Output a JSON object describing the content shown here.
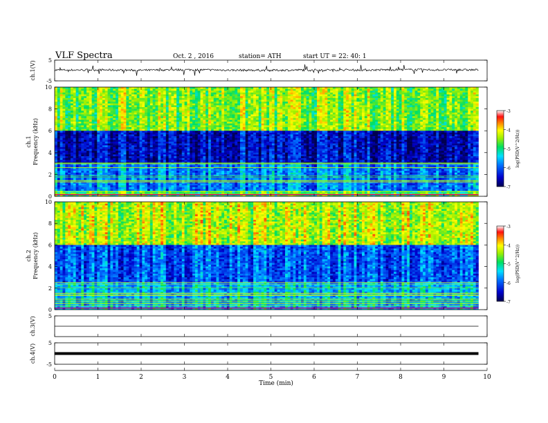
{
  "header": {
    "title": "VLF  Spectra",
    "date": "Oct. 2  , 2016",
    "station": "station= ATH",
    "start": "start  UT  =   22: 40: 1"
  },
  "colorbar": {
    "label": "log(PSD(V^2/Hz))",
    "ticks": [
      "-3",
      "-4",
      "-5",
      "-6",
      "-7"
    ]
  },
  "chart_data": [
    {
      "type": "line",
      "panel": "ch1-waveform",
      "ylabel": "ch.1(V)",
      "ylim": [
        -5,
        5
      ],
      "y_ticks": [
        "5",
        "-5"
      ],
      "x": [
        0,
        1,
        2,
        3,
        4,
        5,
        6,
        7,
        8,
        9,
        9.8
      ],
      "values": [
        0.2,
        0.3,
        0.1,
        0.4,
        0.2,
        0.1,
        0.3,
        0.2,
        0.4,
        0.3,
        0.3
      ]
    },
    {
      "type": "heatmap",
      "panel": "ch1-spectrogram",
      "ylabel": "ch.1\nFrequency  (kHz)",
      "ylabel_lines": [
        "ch.1",
        "Frequency  (kHz)"
      ],
      "ylim": [
        0,
        10
      ],
      "y_ticks": [
        "0",
        "2",
        "4",
        "6",
        "8",
        "10"
      ],
      "bands": [
        {
          "freq_khz": [
            6,
            10
          ],
          "log_psd": -4.5
        },
        {
          "freq_khz": [
            3,
            6
          ],
          "log_psd": -6.5
        },
        {
          "freq_khz": [
            0.5,
            3
          ],
          "log_psd": -5.8
        },
        {
          "freq_khz": [
            0,
            0.5
          ],
          "log_psd": -4.8
        }
      ],
      "crange": [
        -7,
        -3
      ]
    },
    {
      "type": "heatmap",
      "panel": "ch2-spectrogram",
      "ylabel_lines": [
        "ch.2",
        "Frequency  (kHz)"
      ],
      "ylim": [
        0,
        10
      ],
      "y_ticks": [
        "0",
        "2",
        "4",
        "6",
        "8",
        "10"
      ],
      "bands": [
        {
          "freq_khz": [
            6,
            10
          ],
          "log_psd": -4.3
        },
        {
          "freq_khz": [
            2.5,
            6
          ],
          "log_psd": -6.0
        },
        {
          "freq_khz": [
            0,
            2.5
          ],
          "log_psd": -5.5
        }
      ],
      "crange": [
        -7,
        -3
      ]
    },
    {
      "type": "line",
      "panel": "ch3-waveform",
      "ylabel": "ch.3(V)",
      "ylim": [
        -5,
        5
      ],
      "y_ticks": [
        "5"
      ],
      "x": [
        0,
        9.8
      ],
      "values": [
        0,
        0
      ]
    },
    {
      "type": "line",
      "panel": "ch4-waveform",
      "ylabel": "ch.4(V)",
      "ylim": [
        -5,
        5
      ],
      "y_ticks": [
        "5",
        "-5"
      ],
      "x": [
        0,
        9.8
      ],
      "values": [
        0,
        0
      ]
    }
  ],
  "xaxis": {
    "label": "Time  (min)",
    "ticks": [
      "0",
      "1",
      "2",
      "3",
      "4",
      "5",
      "6",
      "7",
      "8",
      "9",
      "10"
    ],
    "xlim": [
      0,
      10
    ]
  }
}
